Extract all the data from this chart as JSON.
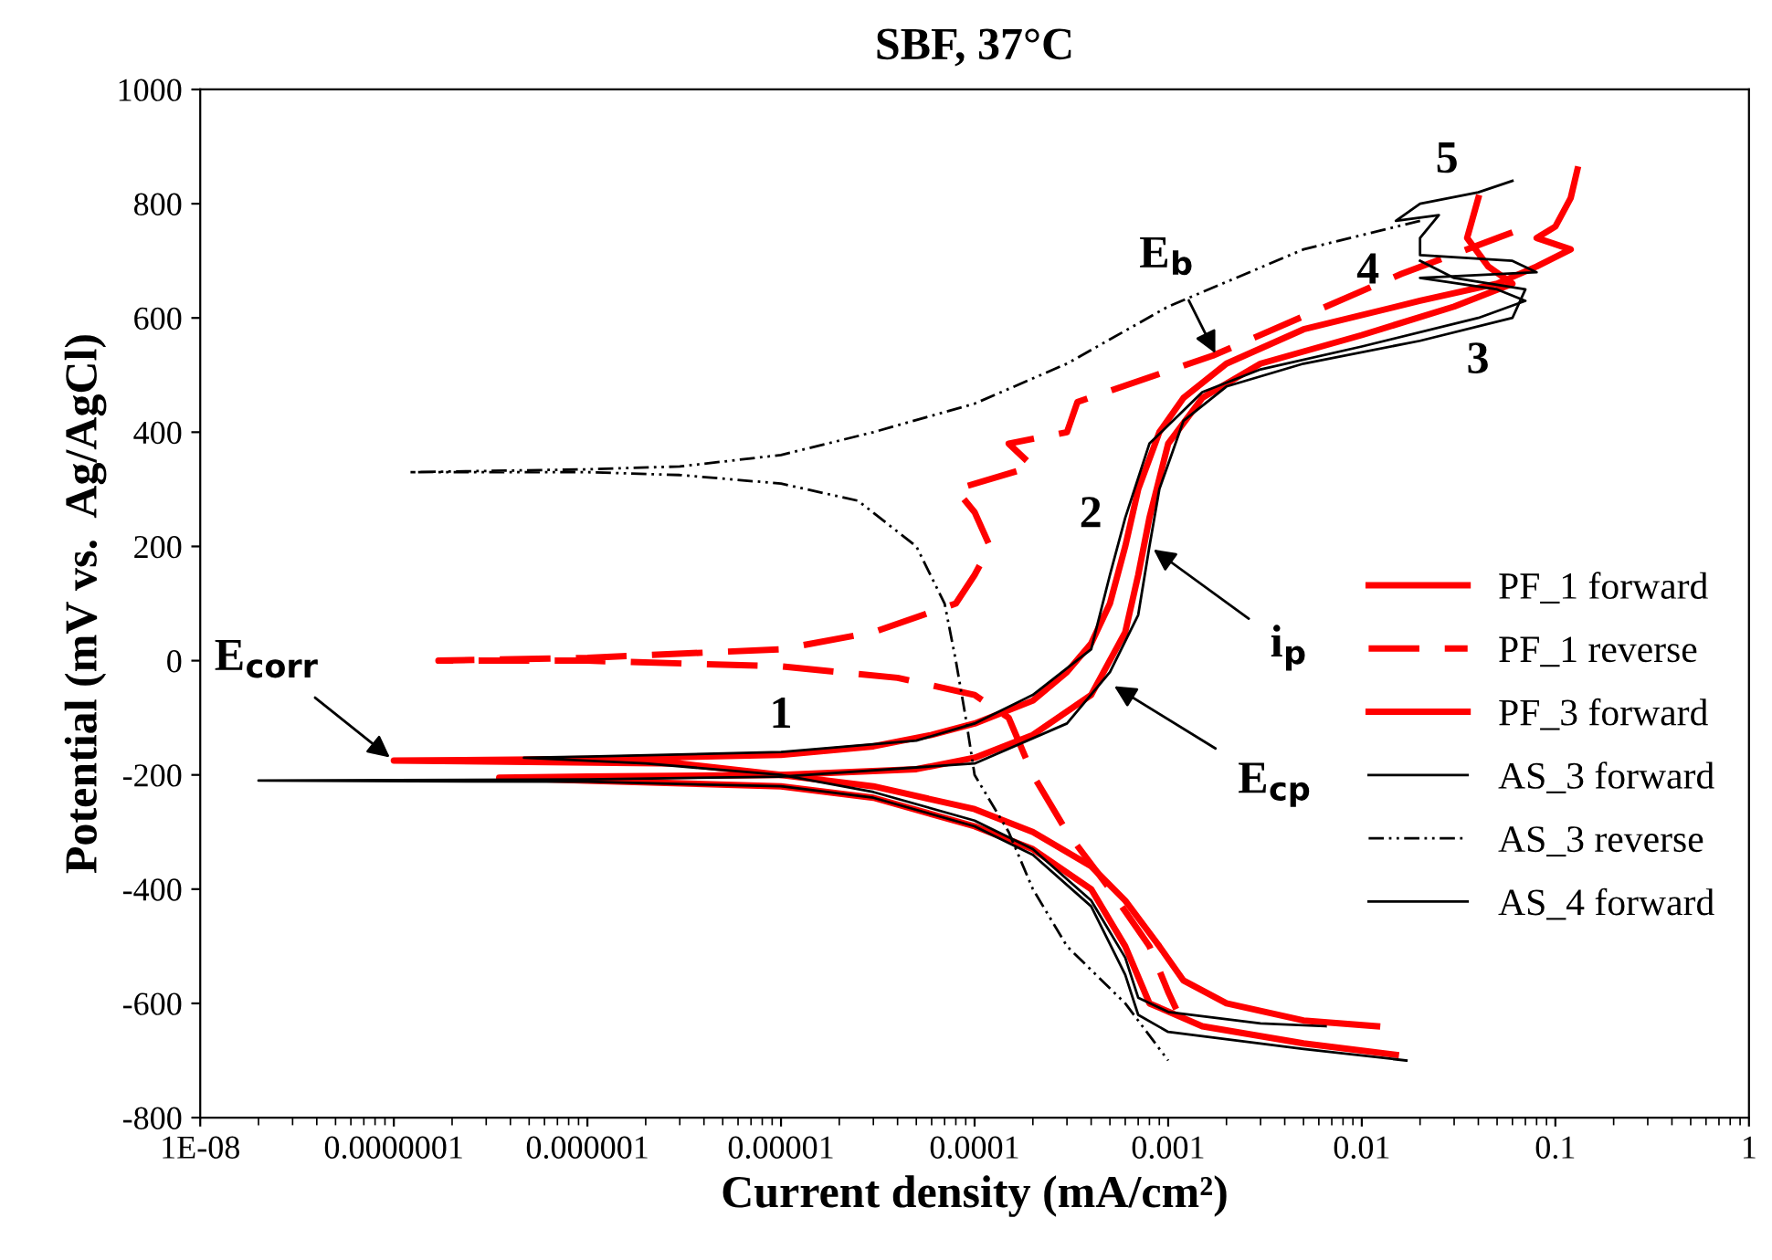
{
  "chart_data": {
    "type": "line",
    "title": "SBF, 37°C",
    "xlabel": "Current density (mA/cm²)",
    "ylabel": "Potential (mV vs.  Ag/AgCl)",
    "log": "x",
    "xlim": [
      1e-08,
      1
    ],
    "ylim": [
      -800,
      1000
    ],
    "xticks": [
      {
        "value": 1e-08,
        "label": "1E-08"
      },
      {
        "value": 1e-07,
        "label": "0.0000001"
      },
      {
        "value": 1e-06,
        "label": "0.000001"
      },
      {
        "value": 1e-05,
        "label": "0.00001"
      },
      {
        "value": 0.0001,
        "label": "0.0001"
      },
      {
        "value": 0.001,
        "label": "0.001"
      },
      {
        "value": 0.01,
        "label": "0.01"
      },
      {
        "value": 0.1,
        "label": "0.1"
      },
      {
        "value": 1,
        "label": "1"
      }
    ],
    "yticks": [
      -800,
      -600,
      -400,
      -200,
      0,
      200,
      400,
      600,
      800,
      1000
    ],
    "grid": false,
    "legend": "right",
    "marker": "none",
    "series": [
      {
        "name": "PF_1 forward",
        "color": "#ff0000",
        "line_style": "solid",
        "x": [
          0.012,
          0.005,
          0.002,
          0.0012,
          0.0009,
          0.0006,
          0.0004,
          0.0002,
          0.0001,
          3e-05,
          1e-05,
          3e-06,
          1e-07,
          1e-06,
          1e-05,
          3e-05,
          6e-05,
          0.0001,
          0.0002,
          0.0003,
          0.0004,
          0.0005,
          0.0006,
          0.0007,
          0.0009,
          0.0012,
          0.002,
          0.005,
          0.02,
          0.05,
          0.08,
          0.12,
          0.08,
          0.1,
          0.12,
          0.13
        ],
        "values": [
          -640,
          -630,
          -600,
          -560,
          -500,
          -420,
          -360,
          -300,
          -260,
          -220,
          -200,
          -180,
          -175,
          -172,
          -165,
          -150,
          -130,
          -110,
          -70,
          -20,
          30,
          100,
          200,
          300,
          400,
          460,
          520,
          580,
          630,
          660,
          690,
          720,
          740,
          760,
          810,
          860
        ]
      },
      {
        "name": "PF_1 reverse",
        "color": "#ff0000",
        "line_style": "dashed",
        "x": [
          0.06,
          0.016,
          0.0017,
          0.00034,
          0.0003,
          0.00015,
          0.0002,
          8e-05,
          0.0001,
          0.00012,
          0.0001,
          8e-05,
          3e-05,
          1e-05,
          1e-06,
          1.7e-07,
          1e-06,
          1e-05,
          4e-05,
          0.0001,
          0.00015,
          0.0002,
          0.0003,
          0.0005,
          0.0008,
          0.001,
          0.0011
        ],
        "values": [
          750,
          677,
          534,
          453,
          400,
          380,
          340,
          300,
          260,
          200,
          150,
          100,
          50,
          20,
          5,
          0,
          0,
          -10,
          -30,
          -60,
          -100,
          -200,
          -300,
          -400,
          -500,
          -580,
          -610
        ]
      },
      {
        "name": "PF_3 forward",
        "color": "#ff0000",
        "line_style": "solid",
        "x": [
          0.015,
          0.005,
          0.0015,
          0.0008,
          0.0006,
          0.0004,
          0.0002,
          0.0001,
          3e-05,
          1e-05,
          1e-06,
          3.5e-07,
          1e-06,
          1e-05,
          5e-05,
          0.0001,
          0.0002,
          0.0004,
          0.0006,
          0.0007,
          0.0008,
          0.001,
          0.0015,
          0.003,
          0.01,
          0.03,
          0.06,
          0.045,
          0.035,
          0.04
        ],
        "values": [
          -690,
          -670,
          -640,
          -600,
          -500,
          -400,
          -330,
          -290,
          -240,
          -220,
          -210,
          -205,
          -203,
          -200,
          -190,
          -170,
          -130,
          -60,
          50,
          150,
          250,
          380,
          460,
          520,
          570,
          620,
          660,
          690,
          740,
          810
        ]
      },
      {
        "name": "AS_3 forward",
        "color": "#000000",
        "line_style": "solid",
        "x": [
          0.0065,
          0.003,
          0.001,
          0.0007,
          0.0006,
          0.0004,
          0.0002,
          0.0001,
          3e-05,
          1e-05,
          2e-06,
          4.7e-07,
          1e-06,
          1e-05,
          5e-05,
          0.0001,
          0.0002,
          0.0004,
          0.0005,
          0.0006,
          0.0008,
          0.0015,
          0.003,
          0.01,
          0.04,
          0.07,
          0.05,
          0.02,
          0.08,
          0.06,
          0.02,
          0.02,
          0.025,
          0.015,
          0.02,
          0.04,
          0.06
        ],
        "values": [
          -640,
          -635,
          -615,
          -590,
          -520,
          -420,
          -330,
          -280,
          -230,
          -200,
          -180,
          -170,
          -168,
          -160,
          -140,
          -110,
          -60,
          20,
          150,
          250,
          380,
          470,
          510,
          550,
          600,
          630,
          650,
          670,
          680,
          700,
          710,
          740,
          780,
          770,
          800,
          820,
          840
        ]
      },
      {
        "name": "AS_3 reverse",
        "color": "#000000",
        "line_style": "dashdot",
        "x": [
          0.02,
          0.005,
          0.001,
          0.0003,
          0.0001,
          3e-05,
          1e-05,
          3e-06,
          1e-06,
          1.2e-07,
          1e-06,
          3e-06,
          1e-05,
          2.5e-05,
          5e-05,
          7e-05,
          8e-05,
          9e-05,
          0.0001,
          0.00015,
          0.0002,
          0.0003,
          0.0006,
          0.001
        ],
        "values": [
          770,
          720,
          620,
          520,
          450,
          400,
          360,
          340,
          335,
          330,
          330,
          325,
          310,
          280,
          200,
          100,
          0,
          -100,
          -200,
          -300,
          -400,
          -500,
          -600,
          -700
        ]
      },
      {
        "name": "AS_4 forward",
        "color": "#000000",
        "line_style": "solid",
        "x": [
          0.017,
          0.005,
          0.001,
          0.0007,
          0.0006,
          0.0004,
          0.0002,
          0.0001,
          3e-05,
          1e-05,
          1e-06,
          2e-08,
          1e-06,
          1e-05,
          0.0001,
          0.0003,
          0.0005,
          0.0007,
          0.0008,
          0.0009,
          0.0012,
          0.002,
          0.005,
          0.02,
          0.06,
          0.07,
          0.03,
          0.02
        ],
        "values": [
          -700,
          -680,
          -650,
          -620,
          -550,
          -430,
          -340,
          -290,
          -240,
          -220,
          -212,
          -210,
          -208,
          -203,
          -180,
          -110,
          -20,
          80,
          200,
          300,
          420,
          480,
          520,
          560,
          600,
          650,
          670,
          700
        ]
      }
    ],
    "annotations": [
      {
        "text": "E$_{corr}$",
        "x": 1e-07,
        "y": -175
      },
      {
        "text": "E$_{b}$",
        "x": 0.0018,
        "y": 530
      },
      {
        "text": "i$_{p}$",
        "x": 0.0008,
        "y": 200
      },
      {
        "text": "E$_{cp}$",
        "x": 0.0005,
        "y": -40
      },
      "1",
      "2",
      "3",
      "4",
      "5"
    ]
  }
}
